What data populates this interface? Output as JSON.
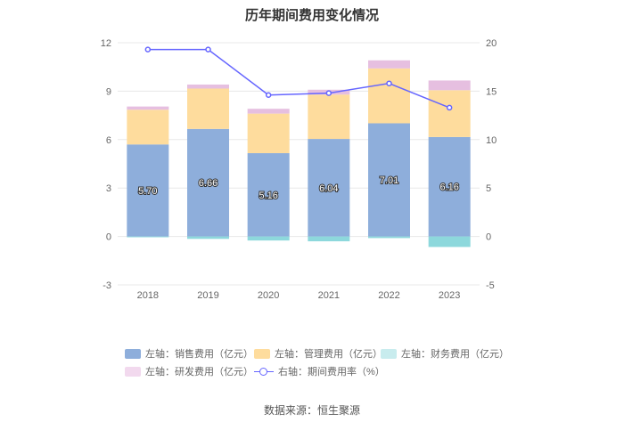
{
  "title": "历年期间费用变化情况",
  "source": "数据来源：恒生聚源",
  "colors": {
    "sales": "#8eaedb",
    "admin": "#fedc9d",
    "finance": "#8dd8dc",
    "rnd": "#e6bfe0",
    "rate": "#6666ff",
    "axis_text": "#666666",
    "grid": "#e8e8e8"
  },
  "legend": [
    {
      "key": "sales",
      "label": "左轴：销售费用（亿元）"
    },
    {
      "key": "admin",
      "label": "左轴：管理费用（亿元）"
    },
    {
      "key": "finance",
      "label": "左轴：财务费用（亿元）"
    },
    {
      "key": "rnd",
      "label": "左轴：研发费用（亿元）"
    },
    {
      "key": "rate",
      "label": "右轴：期间费用率（%）"
    }
  ],
  "chart_data": {
    "type": "bar",
    "stacked": true,
    "categories": [
      "2018",
      "2019",
      "2020",
      "2021",
      "2022",
      "2023"
    ],
    "series": [
      {
        "name": "左轴：销售费用（亿元）",
        "key": "sales",
        "axis": "left",
        "values": [
          5.7,
          6.66,
          5.16,
          6.04,
          7.01,
          6.16
        ],
        "data_labels": [
          "5.70",
          "6.66",
          "5.16",
          "6.04",
          "7.01",
          "6.16"
        ]
      },
      {
        "name": "左轴：管理费用（亿元）",
        "key": "admin",
        "axis": "left",
        "values": [
          2.15,
          2.5,
          2.45,
          2.75,
          3.4,
          2.9
        ]
      },
      {
        "name": "左轴：财务费用（亿元）",
        "key": "finance",
        "axis": "left",
        "values": [
          -0.05,
          -0.15,
          -0.25,
          -0.3,
          -0.1,
          -0.65
        ]
      },
      {
        "name": "左轴：研发费用（亿元）",
        "key": "rnd",
        "axis": "left",
        "values": [
          0.2,
          0.25,
          0.3,
          0.3,
          0.5,
          0.6
        ]
      },
      {
        "name": "右轴：期间费用率（%）",
        "key": "rate",
        "axis": "right",
        "type": "line",
        "values": [
          19.3,
          19.3,
          14.6,
          14.8,
          15.8,
          13.3
        ]
      }
    ],
    "left_axis": {
      "ylim": [
        -3,
        12
      ],
      "ticks": [
        "-3",
        "0",
        "3",
        "6",
        "9",
        "12"
      ]
    },
    "right_axis": {
      "ylim": [
        -5,
        20
      ],
      "ticks": [
        "-5",
        "0",
        "5",
        "10",
        "15",
        "20"
      ]
    },
    "grid": true,
    "legend_position": "bottom"
  }
}
